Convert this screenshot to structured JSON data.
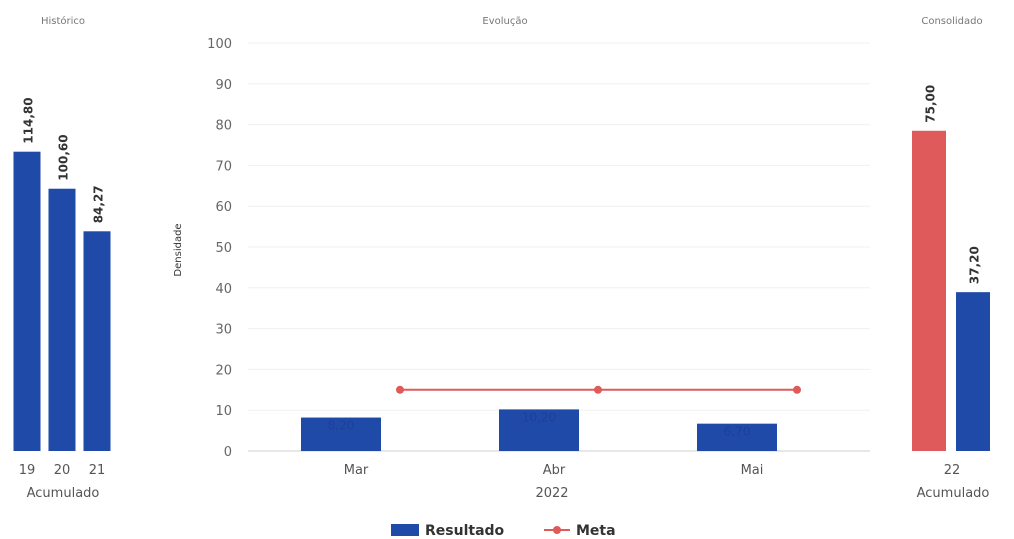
{
  "colors": {
    "resultado": "#1f4aa8",
    "meta": "#e05a5a",
    "consolidado_meta": "#df5b5b"
  },
  "chart_data": [
    {
      "id": "historico",
      "type": "bar",
      "title": "Histórico",
      "categories": [
        "19",
        "20",
        "21"
      ],
      "xlabel": "Acumulado",
      "series": [
        {
          "name": "Resultado",
          "values": [
            114.8,
            100.6,
            84.27
          ],
          "labels": [
            "114,80",
            "100,60",
            "84,27"
          ]
        }
      ],
      "ylim": [
        0,
        140
      ]
    },
    {
      "id": "evolucao",
      "type": "bar",
      "title": "Evolução",
      "categories": [
        "Mar",
        "Abr",
        "Mai"
      ],
      "xlabel": "2022",
      "ylabel": "Densidade",
      "ylim": [
        0,
        100
      ],
      "yticks": [
        0,
        10,
        20,
        30,
        40,
        50,
        60,
        70,
        80,
        90,
        100
      ],
      "grid": true,
      "series": [
        {
          "name": "Resultado",
          "type": "bar",
          "values": [
            8.2,
            10.2,
            6.7
          ],
          "labels": [
            "8,20",
            "10,20",
            "6,70"
          ]
        },
        {
          "name": "Meta",
          "type": "line",
          "values": [
            15,
            15,
            15
          ]
        }
      ]
    },
    {
      "id": "consolidado",
      "type": "bar",
      "title": "Consolidado",
      "categories": [
        "22"
      ],
      "xlabel": "Acumulado",
      "series": [
        {
          "name": "Meta",
          "values": [
            75.0
          ],
          "labels": [
            "75,00"
          ]
        },
        {
          "name": "Resultado",
          "values": [
            37.2
          ],
          "labels": [
            "37,20"
          ]
        }
      ],
      "ylim": [
        0,
        100
      ]
    }
  ],
  "legend": {
    "position": "bottom",
    "items": [
      {
        "name": "Resultado",
        "type": "bar"
      },
      {
        "name": "Meta",
        "type": "line"
      }
    ]
  }
}
